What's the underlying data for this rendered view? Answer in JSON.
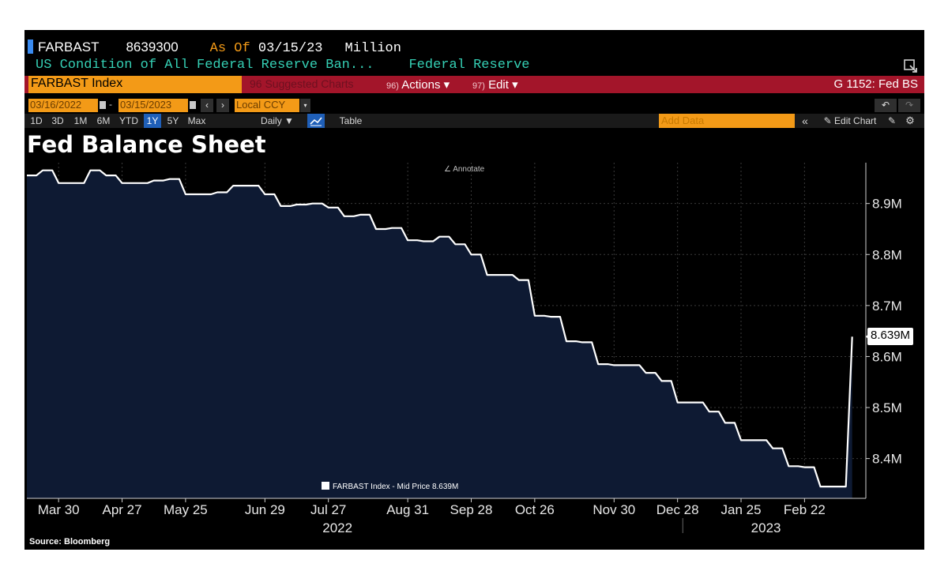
{
  "header": {
    "ticker": "FARBAST",
    "last_value": "8639300",
    "as_of_label": "As Of",
    "as_of_date": "03/15/23",
    "units": "Million",
    "description": "US Condition of All Federal Reserve Ban...",
    "source_name": "Federal Reserve",
    "security": "FARBAST Index",
    "suggested": "96 Suggested Charts",
    "actions_num": "96)",
    "actions_label": "Actions ▾",
    "edit_num": "97)",
    "edit_label": "Edit ▾",
    "function": "G 1152: Fed BS"
  },
  "toolbar": {
    "start_date": "03/16/2022",
    "end_date": "03/15/2023",
    "currency": "Local CCY",
    "ranges": [
      "1D",
      "3D",
      "1M",
      "6M",
      "YTD",
      "1Y",
      "5Y",
      "Max"
    ],
    "active_range": "1Y",
    "frequency": "Daily ▼",
    "table_label": "Table",
    "add_data_placeholder": "Add Data",
    "edit_chart_label": "Edit Chart"
  },
  "colors": {
    "background": "#000000",
    "area_fill": "#0e1a33",
    "line": "#ffffff",
    "grid": "#3a3a3a",
    "accent_orange": "#f39a17",
    "bar_red": "#a3152a",
    "teal_text": "#35d0b5"
  },
  "icons": [
    "undo-icon",
    "redo-icon",
    "line-chart-icon",
    "pencil-icon",
    "gear-icon",
    "export-icon",
    "calendar-icon",
    "chevron-left-icon",
    "chevron-right-icon",
    "double-chevron-left-icon"
  ],
  "chart_data": {
    "type": "area",
    "title": "Fed Balance Sheet",
    "annotate_label": "Annotate",
    "legend": "FARBAST Index - Mid Price 8.639M",
    "last_value_label": "8.639M",
    "ylabel": "",
    "xlabel": "",
    "source": "Source: Bloomberg",
    "y_unit": "M",
    "ylim": [
      8.322,
      8.98
    ],
    "yticks": [
      "8.4M",
      "8.5M",
      "8.6M",
      "8.7M",
      "8.8M",
      "8.9M"
    ],
    "ytick_values": [
      8.4,
      8.5,
      8.6,
      8.7,
      8.8,
      8.9
    ],
    "xlim": [
      "2022-03-16",
      "2023-03-20"
    ],
    "xticks": [
      {
        "label": "Mar 30",
        "date": "2022-03-30"
      },
      {
        "label": "Apr 27",
        "date": "2022-04-27"
      },
      {
        "label": "May 25",
        "date": "2022-05-25"
      },
      {
        "label": "Jun 29",
        "date": "2022-06-29"
      },
      {
        "label": "Jul 27",
        "date": "2022-07-27"
      },
      {
        "label": "Aug 31",
        "date": "2022-08-31"
      },
      {
        "label": "Sep 28",
        "date": "2022-09-28"
      },
      {
        "label": "Oct 26",
        "date": "2022-10-26"
      },
      {
        "label": "Nov 30",
        "date": "2022-11-30"
      },
      {
        "label": "Dec 28",
        "date": "2022-12-28"
      },
      {
        "label": "Jan 25",
        "date": "2023-01-25"
      },
      {
        "label": "Feb 22",
        "date": "2023-02-22"
      }
    ],
    "year_labels": [
      {
        "label": "2022",
        "date": "2022-07-31"
      },
      {
        "label": "2023",
        "date": "2023-02-05"
      }
    ],
    "grid": true,
    "legend_position": "bottom-center",
    "series": [
      {
        "x": [
          "2022-03-16",
          "2022-03-23",
          "2022-03-30",
          "2022-04-06",
          "2022-04-13",
          "2022-04-20",
          "2022-04-27",
          "2022-05-04",
          "2022-05-11",
          "2022-05-18",
          "2022-05-25",
          "2022-06-01",
          "2022-06-08",
          "2022-06-15",
          "2022-06-22",
          "2022-06-29",
          "2022-07-06",
          "2022-07-13",
          "2022-07-20",
          "2022-07-27",
          "2022-08-03",
          "2022-08-10",
          "2022-08-17",
          "2022-08-24",
          "2022-08-31",
          "2022-09-07",
          "2022-09-14",
          "2022-09-21",
          "2022-09-28",
          "2022-10-05",
          "2022-10-12",
          "2022-10-19",
          "2022-10-26",
          "2022-11-02",
          "2022-11-09",
          "2022-11-16",
          "2022-11-23",
          "2022-11-30",
          "2022-12-07",
          "2022-12-14",
          "2022-12-21",
          "2022-12-28",
          "2023-01-04",
          "2023-01-11",
          "2023-01-18",
          "2023-01-25",
          "2023-02-01",
          "2023-02-08",
          "2023-02-15",
          "2023-02-22",
          "2023-03-01",
          "2023-03-08",
          "2023-03-15"
        ],
        "values": [
          8.955,
          8.965,
          8.94,
          8.94,
          8.965,
          8.955,
          8.94,
          8.94,
          8.945,
          8.948,
          8.918,
          8.918,
          8.922,
          8.935,
          8.935,
          8.918,
          8.895,
          8.898,
          8.9,
          8.892,
          8.875,
          8.878,
          8.85,
          8.852,
          8.828,
          8.826,
          8.835,
          8.82,
          8.8,
          8.76,
          8.76,
          8.75,
          8.68,
          8.678,
          8.63,
          8.628,
          8.585,
          8.583,
          8.583,
          8.568,
          8.552,
          8.51,
          8.51,
          8.492,
          8.47,
          8.436,
          8.436,
          8.42,
          8.385,
          8.383,
          8.345,
          8.345,
          8.639
        ]
      }
    ]
  }
}
